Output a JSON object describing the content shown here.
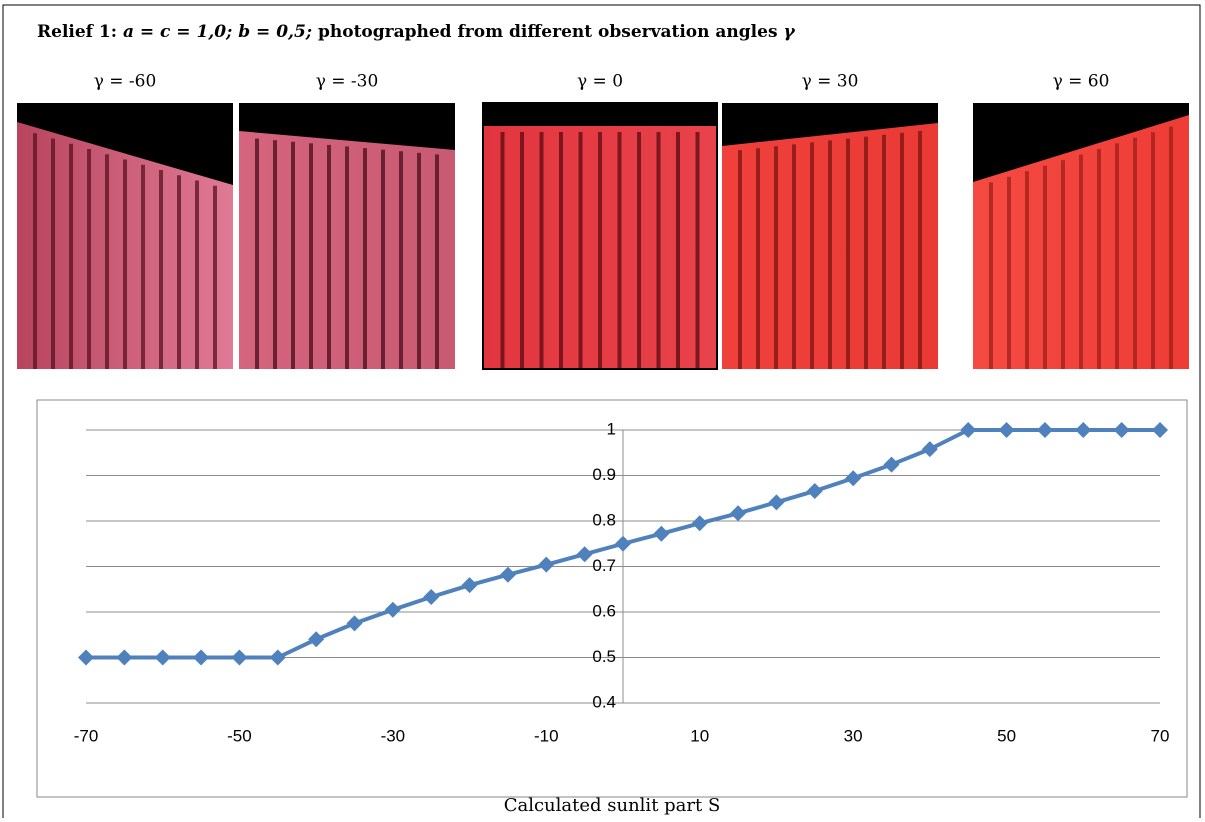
{
  "figure": {
    "title_parts": [
      "Relief 1:  ",
      "a = c = 1,0; b = 0,5;",
      " photographed from different observation angles ",
      "γ"
    ],
    "photo_labels": [
      "γ = -60",
      "γ = -30",
      "γ = 0",
      "γ = 30",
      "γ = 60"
    ],
    "caption": "Calculated sunlit part S"
  },
  "chart_data": {
    "type": "line",
    "x": [
      -70,
      -65,
      -60,
      -55,
      -50,
      -45,
      -40,
      -35,
      -30,
      -25,
      -20,
      -15,
      -10,
      -5,
      0,
      5,
      10,
      15,
      20,
      25,
      30,
      35,
      40,
      45,
      50,
      55,
      60,
      65,
      70
    ],
    "series": [
      {
        "color": "#4f81bd",
        "values": [
          0.5,
          0.5,
          0.5,
          0.5,
          0.5,
          0.5,
          0.54,
          0.575,
          0.605,
          0.633,
          0.659,
          0.682,
          0.704,
          0.727,
          0.75,
          0.772,
          0.795,
          0.817,
          0.841,
          0.866,
          0.894,
          0.924,
          0.958,
          1,
          1,
          1,
          1,
          1,
          1
        ]
      }
    ],
    "xlim": [
      -70,
      70
    ],
    "xticks": [
      -70,
      -50,
      -30,
      -10,
      10,
      30,
      50,
      70
    ],
    "ylim": [
      0.4,
      1
    ],
    "yticks": [
      0.4,
      0.5,
      0.6,
      0.7,
      0.8,
      0.9,
      1
    ],
    "grid": true
  }
}
